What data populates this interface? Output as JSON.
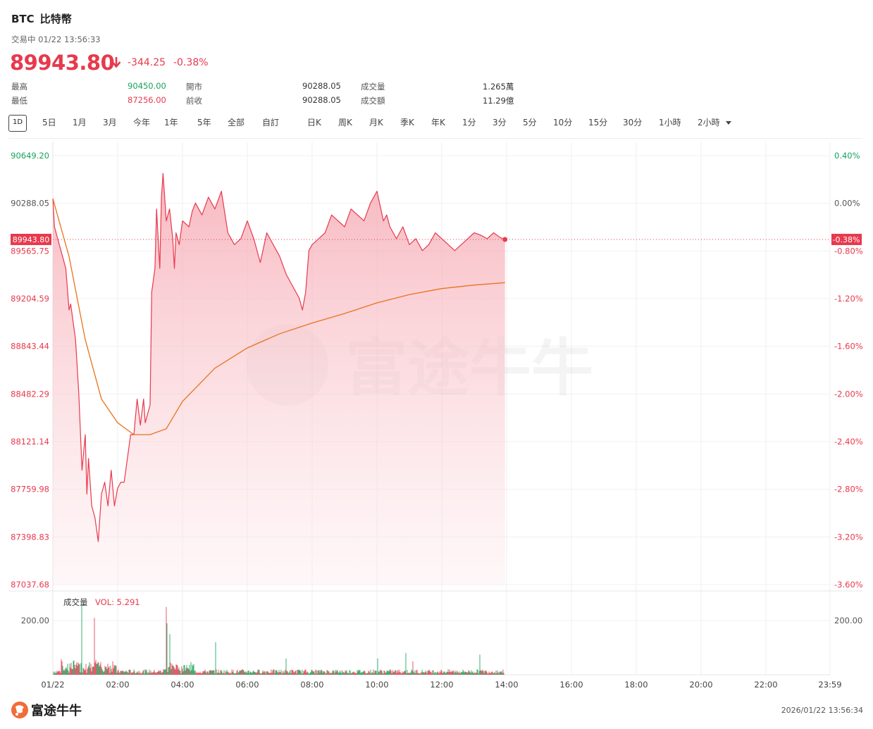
{
  "header": {
    "symbol": "BTC",
    "name": "比特幣",
    "status": "交易中 01/22 13:56:33",
    "price": "89943.80",
    "change": "-344.25",
    "change_pct": "-0.38%",
    "colors": {
      "down": "#e8394d",
      "up": "#17a35c"
    }
  },
  "stats": {
    "high_label": "最高",
    "high": "90450.00",
    "low_label": "最低",
    "low": "87256.00",
    "open_label": "開市",
    "open": "90288.05",
    "prev_label": "前收",
    "prev": "90288.05",
    "vol_label": "成交量",
    "vol": "1.265萬",
    "turnover_label": "成交額",
    "turnover": "11.29億"
  },
  "tabs": [
    "1D",
    "5日",
    "1月",
    "3月",
    "今年",
    "1年",
    "5年",
    "全部",
    "自訂",
    "日K",
    "周K",
    "月K",
    "季K",
    "年K",
    "1分",
    "3分",
    "5分",
    "10分",
    "15分",
    "30分",
    "1小時",
    "2小時"
  ],
  "active_tab": "1D",
  "watermark": "富途牛牛",
  "footer": {
    "logo_text": "富途牛牛",
    "timestamp": "2026/01/22 13:56:34"
  },
  "chart_data": {
    "type": "line",
    "x_axis": {
      "labels": [
        "01/22",
        "02:00",
        "04:00",
        "06:00",
        "08:00",
        "10:00",
        "12:00",
        "14:00",
        "16:00",
        "18:00",
        "20:00",
        "22:00",
        "23:59"
      ]
    },
    "y_axis_left": {
      "ticks": [
        "90649.20",
        "90288.05",
        "89565.75",
        "89204.59",
        "88843.44",
        "88482.29",
        "88121.14",
        "87759.98",
        "87398.83",
        "87037.68"
      ],
      "range": [
        87037.68,
        90649.2
      ]
    },
    "y_axis_right": {
      "ticks": [
        "0.40%",
        "0.00%",
        "-0.80%",
        "-1.20%",
        "-1.60%",
        "-2.00%",
        "-2.40%",
        "-2.80%",
        "-3.20%",
        "-3.60%"
      ]
    },
    "current_price_label": "89943.80",
    "current_pct_label": "-0.38%",
    "prev_close": 90288.05,
    "series": [
      {
        "type": "line",
        "color": "#e8394d",
        "x_hours": [
          0,
          0.05,
          0.15,
          0.3,
          0.4,
          0.5,
          0.55,
          0.7,
          0.8,
          0.9,
          1.0,
          1.05,
          1.1,
          1.2,
          1.3,
          1.4,
          1.5,
          1.6,
          1.7,
          1.8,
          1.9,
          2.0,
          2.1,
          2.2,
          2.3,
          2.4,
          2.5,
          2.6,
          2.7,
          2.8,
          2.85,
          3.0,
          3.05,
          3.15,
          3.2,
          3.3,
          3.35,
          3.4,
          3.5,
          3.6,
          3.7,
          3.75,
          3.8,
          3.9,
          4.0,
          4.2,
          4.3,
          4.4,
          4.6,
          4.8,
          5.0,
          5.2,
          5.4,
          5.6,
          5.8,
          6.0,
          6.2,
          6.4,
          6.6,
          6.8,
          7.0,
          7.2,
          7.4,
          7.6,
          7.7,
          7.8,
          7.9,
          8.0,
          8.2,
          8.4,
          8.6,
          8.8,
          9.0,
          9.2,
          9.4,
          9.6,
          9.8,
          10.0,
          10.2,
          10.3,
          10.4,
          10.6,
          10.8,
          11.0,
          11.2,
          11.4,
          11.6,
          11.8,
          12.0,
          12.2,
          12.4,
          12.6,
          12.8,
          13.0,
          13.2,
          13.4,
          13.6,
          13.8,
          13.95
        ],
        "values": [
          90288,
          90050,
          89950,
          89800,
          89700,
          89350,
          89400,
          89100,
          88650,
          88000,
          88300,
          87800,
          88100,
          87700,
          87600,
          87400,
          87800,
          87900,
          87700,
          88000,
          87700,
          87850,
          87900,
          87900,
          88100,
          88300,
          88300,
          88600,
          88380,
          88600,
          88400,
          88550,
          89500,
          89700,
          90200,
          89700,
          90300,
          90500,
          90100,
          90200,
          89950,
          89700,
          90000,
          89900,
          90100,
          90050,
          90180,
          90250,
          90150,
          90300,
          90200,
          90350,
          90000,
          89900,
          89950,
          90100,
          89950,
          89750,
          90000,
          89900,
          89800,
          89650,
          89550,
          89450,
          89350,
          89500,
          89850,
          89900,
          89950,
          90000,
          90150,
          90100,
          90050,
          90200,
          90150,
          90100,
          90250,
          90350,
          90100,
          90150,
          90050,
          89950,
          90050,
          89900,
          89950,
          89850,
          89900,
          90000,
          89950,
          89900,
          89850,
          89900,
          89950,
          90000,
          89980,
          89950,
          90000,
          89960,
          89943.8
        ]
      },
      {
        "type": "line",
        "name": "avg",
        "color": "#e8731b",
        "x_hours": [
          0,
          0.5,
          1.0,
          1.5,
          2.0,
          2.5,
          3.0,
          3.5,
          4.0,
          5.0,
          6.0,
          7.0,
          8.0,
          9.0,
          10.0,
          11.0,
          12.0,
          13.0,
          13.95
        ],
        "values": [
          90288,
          89800,
          89100,
          88600,
          88400,
          88300,
          88300,
          88350,
          88580,
          88860,
          89030,
          89150,
          89240,
          89320,
          89410,
          89480,
          89530,
          89560,
          89580
        ]
      }
    ],
    "volume": {
      "label": "成交量",
      "vol_label": "VOL: 5.291",
      "tick": "200.00",
      "range": [
        0,
        260
      ]
    }
  }
}
